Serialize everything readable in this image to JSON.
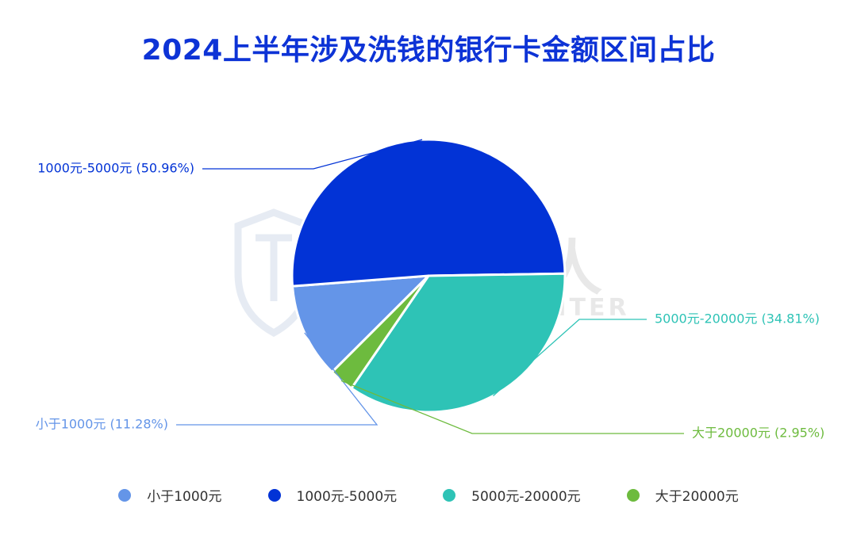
{
  "title": "2024上半年涉及洗钱的银行卡金额区间占比",
  "watermark": {
    "cn": "威胁猎人",
    "en": "THREAT HUNTER"
  },
  "chart_data": {
    "type": "pie",
    "title": "2024上半年涉及洗钱的银行卡金额区间占比",
    "slices": [
      {
        "label": "小于1000元",
        "value": 11.28,
        "display": "小于1000元 (11.28%)",
        "color": "#6495e8"
      },
      {
        "label": "1000元-5000元",
        "value": 50.96,
        "display": "1000元-5000元 (50.96%)",
        "color": "#0233d6"
      },
      {
        "label": "5000元-20000元",
        "value": 34.81,
        "display": "5000元-20000元 (34.81%)",
        "color": "#2ec3b6"
      },
      {
        "label": "大于20000元",
        "value": 2.95,
        "display": "大于20000元 (2.95%)",
        "color": "#6dbb3e"
      }
    ],
    "legend_position": "bottom"
  },
  "legend": {
    "items": [
      "小于1000元",
      "1000元-5000元",
      "5000元-20000元",
      "大于20000元"
    ]
  }
}
